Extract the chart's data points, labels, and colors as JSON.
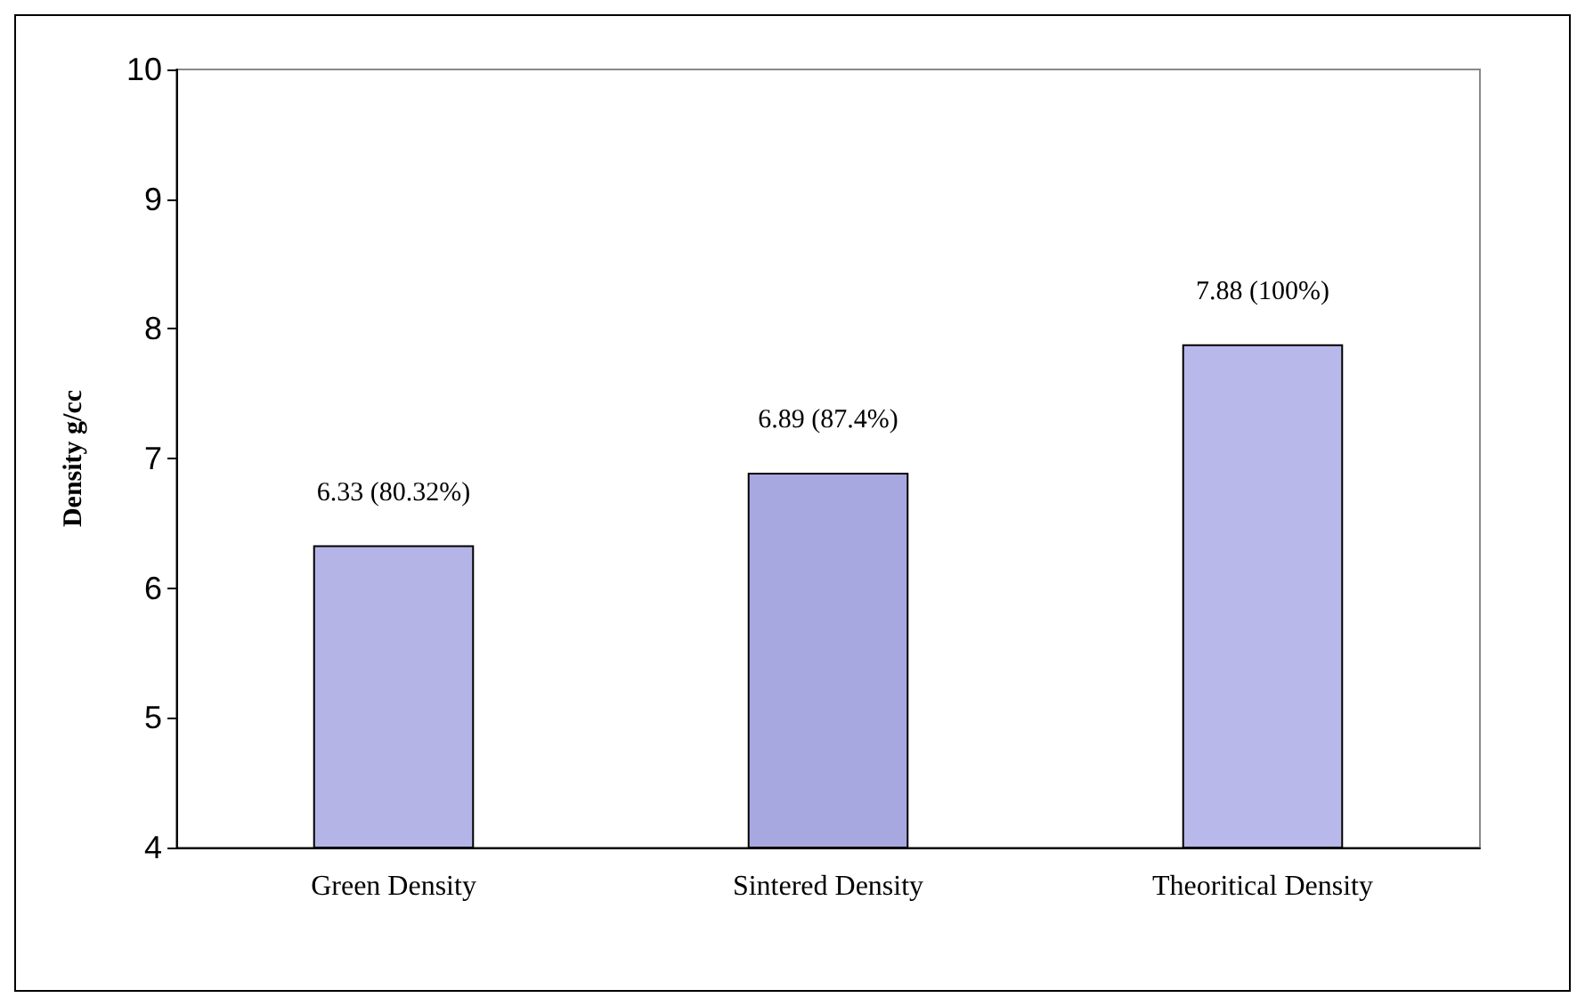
{
  "chart_data": {
    "type": "bar",
    "ylabel": "Density g/cc",
    "categories": [
      "Green Density",
      "Sintered Density",
      "Theoritical Density"
    ],
    "values": [
      6.33,
      6.89,
      7.88
    ],
    "colors": [
      "#b4b4e6",
      "#a8a8e0",
      "#b8b8ea"
    ],
    "value_labels": [
      "6.33 (80.32%)",
      "6.89 (87.4%)",
      "7.88 (100%)"
    ],
    "ylim": [
      4,
      10
    ],
    "yticks": [
      4,
      5,
      6,
      7,
      8,
      9,
      10
    ],
    "grid": false
  }
}
